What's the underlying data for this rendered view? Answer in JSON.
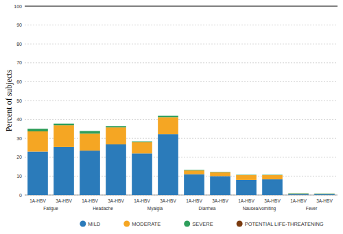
{
  "chart_data": {
    "type": "bar",
    "stacked": true,
    "grid": true,
    "legend": "bottom",
    "y_label": "Percent of subjects",
    "categories": [
      "1A-HBV",
      "3A-HBV",
      "1A-HBV",
      "3A-HBV",
      "1A-HBV",
      "3A-HBV",
      "1A-HBV",
      "3A-HBV",
      "1A-HBV",
      "3A-HBV",
      "1A-HBV",
      "3A-HBV"
    ],
    "category_groups": [
      "Fatigue",
      "Headache",
      "Myalgia",
      "Diarrhea",
      "Nausea/vomiting",
      "Fever"
    ],
    "ylim": [
      0,
      100
    ],
    "yticks": [
      0,
      10,
      20,
      30,
      40,
      50,
      60,
      70,
      80,
      90,
      100
    ],
    "series": [
      {
        "name": "MILD",
        "color": "#2b7bba",
        "values": [
          23,
          25.4,
          23.5,
          26.8,
          22,
          32.2,
          11,
          10,
          8,
          8.3,
          0.5,
          0.4
        ]
      },
      {
        "name": "MODERATE",
        "color": "#f5a623",
        "values": [
          10.7,
          11.5,
          9,
          9,
          6,
          9,
          2,
          2,
          2.5,
          2.2,
          0.2,
          0.2
        ]
      },
      {
        "name": "SEVERE",
        "color": "#2e9e5b",
        "values": [
          1.4,
          0.9,
          1.4,
          0.7,
          0.4,
          0.8,
          0.3,
          0.2,
          0.2,
          0.2,
          0.2,
          0.2
        ]
      },
      {
        "name": "POTENTIAL LIFE-THREATENING",
        "color": "#7a3b10",
        "values": [
          0,
          0,
          0,
          0,
          0,
          0,
          0,
          0,
          0,
          0,
          0,
          0
        ]
      }
    ]
  }
}
